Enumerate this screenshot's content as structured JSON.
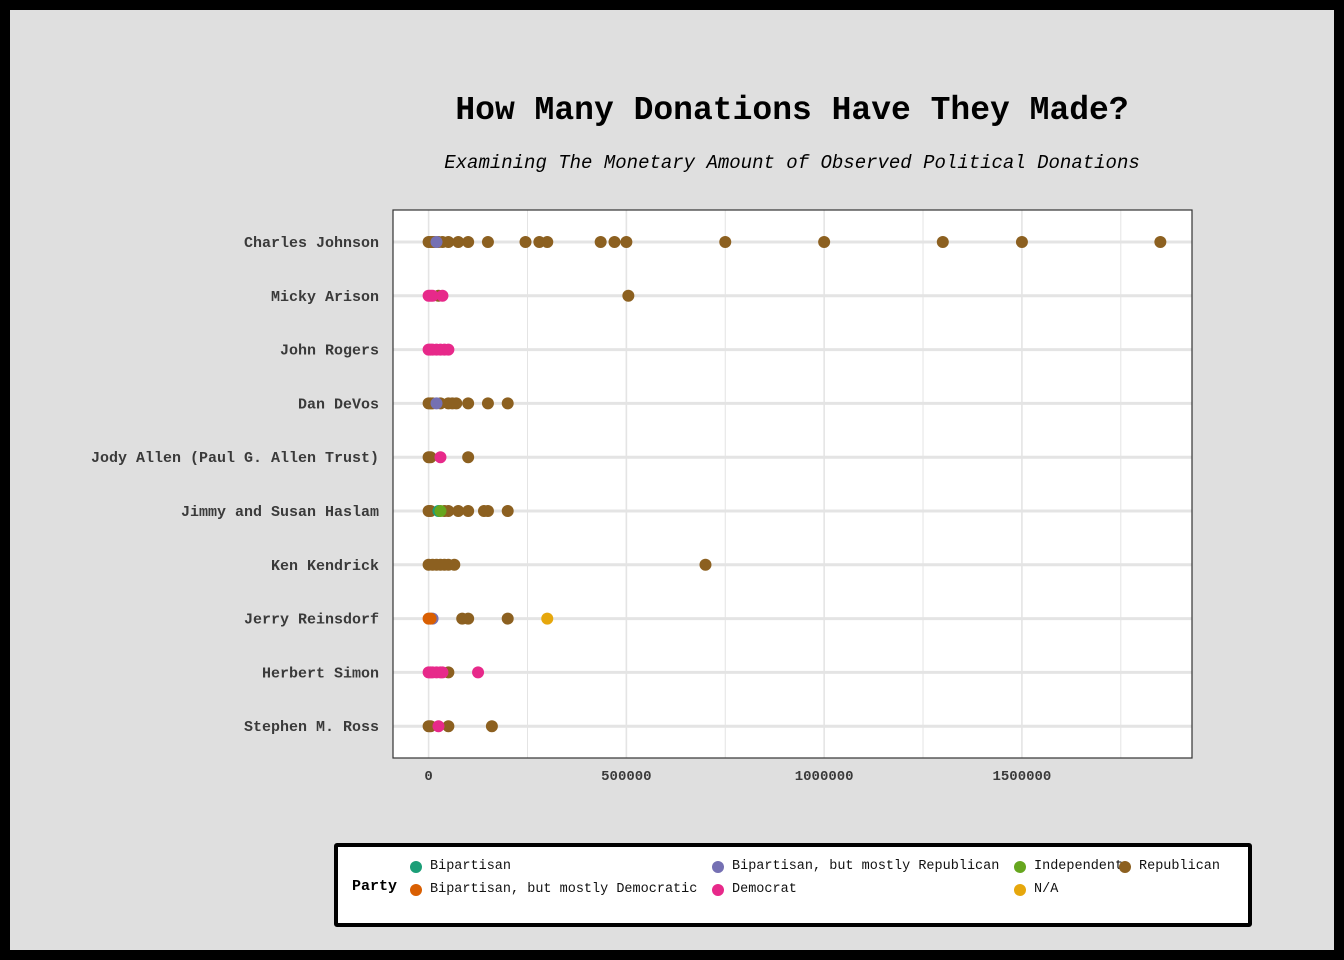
{
  "chart_data": {
    "type": "scatter",
    "title": "How Many Donations Have They Made?",
    "subtitle": "Examining The Monetary Amount of Observed Political Donations",
    "xlabel": "",
    "ylabel": "",
    "xlim": [
      -90000,
      1930000
    ],
    "xticks": [
      0,
      500000,
      1000000,
      1500000
    ],
    "xtick_labels": [
      "0",
      "500000",
      "1000000",
      "1500000"
    ],
    "grid": true,
    "legend": {
      "title": "Party",
      "placement": "bottom",
      "entries": [
        {
          "name": "Bipartisan",
          "color": "#1b9e77"
        },
        {
          "name": "Bipartisan, but mostly Republican",
          "color": "#7570b3"
        },
        {
          "name": "Independent",
          "color": "#66a61e"
        },
        {
          "name": "Republican",
          "color": "#8c6020"
        },
        {
          "name": "Bipartisan, but mostly Democratic",
          "color": "#d95f02"
        },
        {
          "name": "Democrat",
          "color": "#e7298a"
        },
        {
          "name": "N/A",
          "color": "#e6a70c"
        }
      ]
    },
    "categories": [
      "Charles Johnson",
      "Micky Arison",
      "John Rogers",
      "Dan DeVos",
      "Jody Allen (Paul G. Allen Trust)",
      "Jimmy and Susan Haslam",
      "Ken Kendrick",
      "Jerry Reinsdorf",
      "Herbert Simon",
      "Stephen M. Ross"
    ],
    "series": [
      {
        "name": "Republican",
        "points": [
          [
            "Charles Johnson",
            0
          ],
          [
            "Charles Johnson",
            5000
          ],
          [
            "Charles Johnson",
            10000
          ],
          [
            "Charles Johnson",
            15000
          ],
          [
            "Charles Johnson",
            25000
          ],
          [
            "Charles Johnson",
            35000
          ],
          [
            "Charles Johnson",
            50000
          ],
          [
            "Charles Johnson",
            75000
          ],
          [
            "Charles Johnson",
            100000
          ],
          [
            "Charles Johnson",
            150000
          ],
          [
            "Charles Johnson",
            245000
          ],
          [
            "Charles Johnson",
            280000
          ],
          [
            "Charles Johnson",
            300000
          ],
          [
            "Charles Johnson",
            435000
          ],
          [
            "Charles Johnson",
            470000
          ],
          [
            "Charles Johnson",
            500000
          ],
          [
            "Charles Johnson",
            750000
          ],
          [
            "Charles Johnson",
            1000000
          ],
          [
            "Charles Johnson",
            1300000
          ],
          [
            "Charles Johnson",
            1500000
          ],
          [
            "Charles Johnson",
            1850000
          ],
          [
            "Micky Arison",
            25000
          ],
          [
            "Micky Arison",
            505000
          ],
          [
            "Dan DeVos",
            0
          ],
          [
            "Dan DeVos",
            5000
          ],
          [
            "Dan DeVos",
            10000
          ],
          [
            "Dan DeVos",
            30000
          ],
          [
            "Dan DeVos",
            50000
          ],
          [
            "Dan DeVos",
            60000
          ],
          [
            "Dan DeVos",
            70000
          ],
          [
            "Dan DeVos",
            100000
          ],
          [
            "Dan DeVos",
            150000
          ],
          [
            "Dan DeVos",
            200000
          ],
          [
            "Jody Allen (Paul G. Allen Trust)",
            0
          ],
          [
            "Jody Allen (Paul G. Allen Trust)",
            5000
          ],
          [
            "Jody Allen (Paul G. Allen Trust)",
            100000
          ],
          [
            "Jimmy and Susan Haslam",
            0
          ],
          [
            "Jimmy and Susan Haslam",
            5000
          ],
          [
            "Jimmy and Susan Haslam",
            40000
          ],
          [
            "Jimmy and Susan Haslam",
            50000
          ],
          [
            "Jimmy and Susan Haslam",
            75000
          ],
          [
            "Jimmy and Susan Haslam",
            100000
          ],
          [
            "Jimmy and Susan Haslam",
            140000
          ],
          [
            "Jimmy and Susan Haslam",
            150000
          ],
          [
            "Jimmy and Susan Haslam",
            200000
          ],
          [
            "Ken Kendrick",
            0
          ],
          [
            "Ken Kendrick",
            10000
          ],
          [
            "Ken Kendrick",
            20000
          ],
          [
            "Ken Kendrick",
            30000
          ],
          [
            "Ken Kendrick",
            40000
          ],
          [
            "Ken Kendrick",
            50000
          ],
          [
            "Ken Kendrick",
            65000
          ],
          [
            "Ken Kendrick",
            700000
          ],
          [
            "Jerry Reinsdorf",
            85000
          ],
          [
            "Jerry Reinsdorf",
            100000
          ],
          [
            "Jerry Reinsdorf",
            200000
          ],
          [
            "Herbert Simon",
            50000
          ],
          [
            "Stephen M. Ross",
            0
          ],
          [
            "Stephen M. Ross",
            5000
          ],
          [
            "Stephen M. Ross",
            50000
          ],
          [
            "Stephen M. Ross",
            160000
          ]
        ]
      },
      {
        "name": "Bipartisan, but mostly Republican",
        "points": [
          [
            "Charles Johnson",
            20000
          ],
          [
            "Dan DeVos",
            20000
          ],
          [
            "Jerry Reinsdorf",
            10000
          ]
        ]
      },
      {
        "name": "Bipartisan",
        "points": [
          [
            "Jimmy and Susan Haslam",
            25000
          ]
        ]
      },
      {
        "name": "Independent",
        "points": [
          [
            "Jimmy and Susan Haslam",
            30000
          ]
        ]
      },
      {
        "name": "Bipartisan, but mostly Democratic",
        "points": [
          [
            "Jerry Reinsdorf",
            0
          ],
          [
            "Jerry Reinsdorf",
            5000
          ]
        ]
      },
      {
        "name": "Democrat",
        "points": [
          [
            "Micky Arison",
            0
          ],
          [
            "Micky Arison",
            5000
          ],
          [
            "Micky Arison",
            10000
          ],
          [
            "Micky Arison",
            35000
          ],
          [
            "John Rogers",
            0
          ],
          [
            "John Rogers",
            5000
          ],
          [
            "John Rogers",
            10000
          ],
          [
            "John Rogers",
            20000
          ],
          [
            "John Rogers",
            30000
          ],
          [
            "John Rogers",
            40000
          ],
          [
            "John Rogers",
            50000
          ],
          [
            "Jody Allen (Paul G. Allen Trust)",
            30000
          ],
          [
            "Herbert Simon",
            0
          ],
          [
            "Herbert Simon",
            5000
          ],
          [
            "Herbert Simon",
            10000
          ],
          [
            "Herbert Simon",
            20000
          ],
          [
            "Herbert Simon",
            30000
          ],
          [
            "Herbert Simon",
            35000
          ],
          [
            "Herbert Simon",
            125000
          ],
          [
            "Stephen M. Ross",
            25000
          ]
        ]
      },
      {
        "name": "N/A",
        "points": [
          [
            "Jerry Reinsdorf",
            300000
          ]
        ]
      }
    ]
  }
}
